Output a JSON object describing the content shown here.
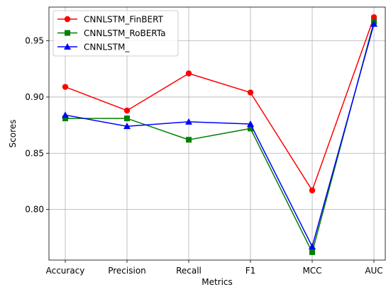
{
  "chart_data": {
    "type": "line",
    "title": "",
    "xlabel": "Metrics",
    "ylabel": "Scores",
    "categories": [
      "Accuracy",
      "Precision",
      "Recall",
      "F1",
      "MCC",
      "AUC"
    ],
    "ylim": [
      0.755,
      0.98
    ],
    "yticks": [
      "0.80",
      "0.85",
      "0.90",
      "0.95"
    ],
    "ytick_values": [
      0.8,
      0.85,
      0.9,
      0.95
    ],
    "grid": true,
    "legend_position": "top-left",
    "series": [
      {
        "name": "CNNLSTM_FinBERT",
        "color": "#ff0000",
        "marker": "circle",
        "values": [
          0.909,
          0.888,
          0.921,
          0.904,
          0.817,
          0.971
        ]
      },
      {
        "name": "CNNLSTM_RoBERTa",
        "color": "#008000",
        "marker": "square",
        "values": [
          0.881,
          0.881,
          0.862,
          0.872,
          0.762,
          0.967
        ]
      },
      {
        "name": "CNNLSTM_",
        "color": "#0000ff",
        "marker": "triangle",
        "values": [
          0.884,
          0.874,
          0.878,
          0.876,
          0.767,
          0.965
        ]
      }
    ]
  }
}
